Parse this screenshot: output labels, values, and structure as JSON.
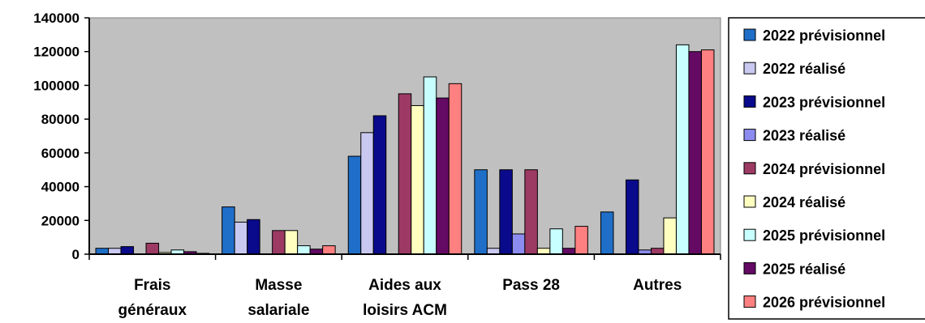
{
  "chart_data": {
    "type": "bar",
    "categories": [
      [
        "Frais",
        "généraux"
      ],
      [
        "Masse",
        "salariale"
      ],
      [
        "Aides aux",
        "loisirs ACM"
      ],
      [
        "Pass 28"
      ],
      [
        "Autres"
      ]
    ],
    "y_ticks": [
      "0",
      "20000",
      "40000",
      "60000",
      "80000",
      "100000",
      "120000",
      "140000"
    ],
    "ylim": [
      0,
      140000
    ],
    "grid": false,
    "legend_position": "right",
    "plot_background": "#c0c0c0",
    "series": [
      {
        "name": "2022 prévisionnel",
        "color": "#1f6fc8",
        "values": [
          3500,
          28000,
          58000,
          50000,
          25000
        ]
      },
      {
        "name": "2022 réalisé",
        "color": "#c8c8f0",
        "values": [
          3500,
          19000,
          72000,
          3500,
          0
        ]
      },
      {
        "name": "2023 prévisionnel",
        "color": "#0a0a8c",
        "values": [
          4500,
          20500,
          82000,
          50000,
          44000
        ]
      },
      {
        "name": "2023 réalisé",
        "color": "#8c8cf0",
        "values": [
          0,
          0,
          0,
          12000,
          2500
        ]
      },
      {
        "name": "2024 prévisionnel",
        "color": "#9c3a64",
        "values": [
          6500,
          14000,
          95000,
          50000,
          3500
        ]
      },
      {
        "name": "2024 réalisé",
        "color": "#ffffc0",
        "values": [
          1000,
          14000,
          88000,
          3500,
          21500
        ]
      },
      {
        "name": "2025 prévisionnel",
        "color": "#c8ffff",
        "values": [
          2500,
          5000,
          105000,
          15000,
          124000
        ]
      },
      {
        "name": "2025 réalisé",
        "color": "#640a64",
        "values": [
          1500,
          3000,
          92500,
          3500,
          120000
        ]
      },
      {
        "name": "2026 prévisionnel",
        "color": "#ff8080",
        "values": [
          500,
          5000,
          101000,
          16500,
          121000
        ]
      }
    ]
  }
}
